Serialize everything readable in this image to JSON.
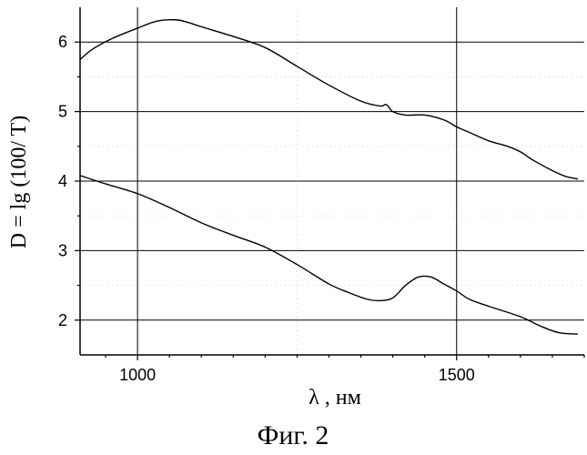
{
  "chart_data": {
    "type": "line",
    "title": "",
    "caption": "Фиг. 2",
    "xlabel": "λ , нм",
    "ylabel": "D = lg (100/ T)",
    "xlim": [
      910,
      1700
    ],
    "ylim": [
      1.5,
      6.5
    ],
    "x_ticks": [
      1000,
      1500
    ],
    "y_ticks": [
      2,
      3,
      4,
      5,
      6
    ],
    "x_tick_labels": [
      "1000",
      "1500"
    ],
    "y_tick_labels": [
      "2",
      "3",
      "4",
      "5",
      "6"
    ],
    "grid": true,
    "series": [
      {
        "x": [
          910,
          930,
          960,
          1000,
          1030,
          1060,
          1080,
          1100,
          1150,
          1200,
          1250,
          1300,
          1350,
          1380,
          1390,
          1400,
          1420,
          1450,
          1480,
          1500,
          1520,
          1550,
          1580,
          1600,
          1620,
          1650,
          1670,
          1690
        ],
        "y": [
          5.75,
          5.9,
          6.05,
          6.2,
          6.3,
          6.32,
          6.28,
          6.22,
          6.08,
          5.92,
          5.65,
          5.38,
          5.15,
          5.08,
          5.1,
          5.0,
          4.95,
          4.95,
          4.88,
          4.78,
          4.7,
          4.58,
          4.5,
          4.42,
          4.3,
          4.15,
          4.07,
          4.03
        ]
      },
      {
        "x": [
          910,
          950,
          1000,
          1050,
          1100,
          1150,
          1200,
          1250,
          1300,
          1330,
          1360,
          1380,
          1400,
          1420,
          1440,
          1460,
          1480,
          1500,
          1520,
          1550,
          1600,
          1630,
          1660,
          1690
        ],
        "y": [
          4.08,
          3.96,
          3.82,
          3.62,
          3.4,
          3.22,
          3.05,
          2.8,
          2.52,
          2.4,
          2.3,
          2.28,
          2.32,
          2.5,
          2.62,
          2.62,
          2.52,
          2.42,
          2.3,
          2.2,
          2.05,
          1.92,
          1.82,
          1.8
        ]
      }
    ]
  }
}
